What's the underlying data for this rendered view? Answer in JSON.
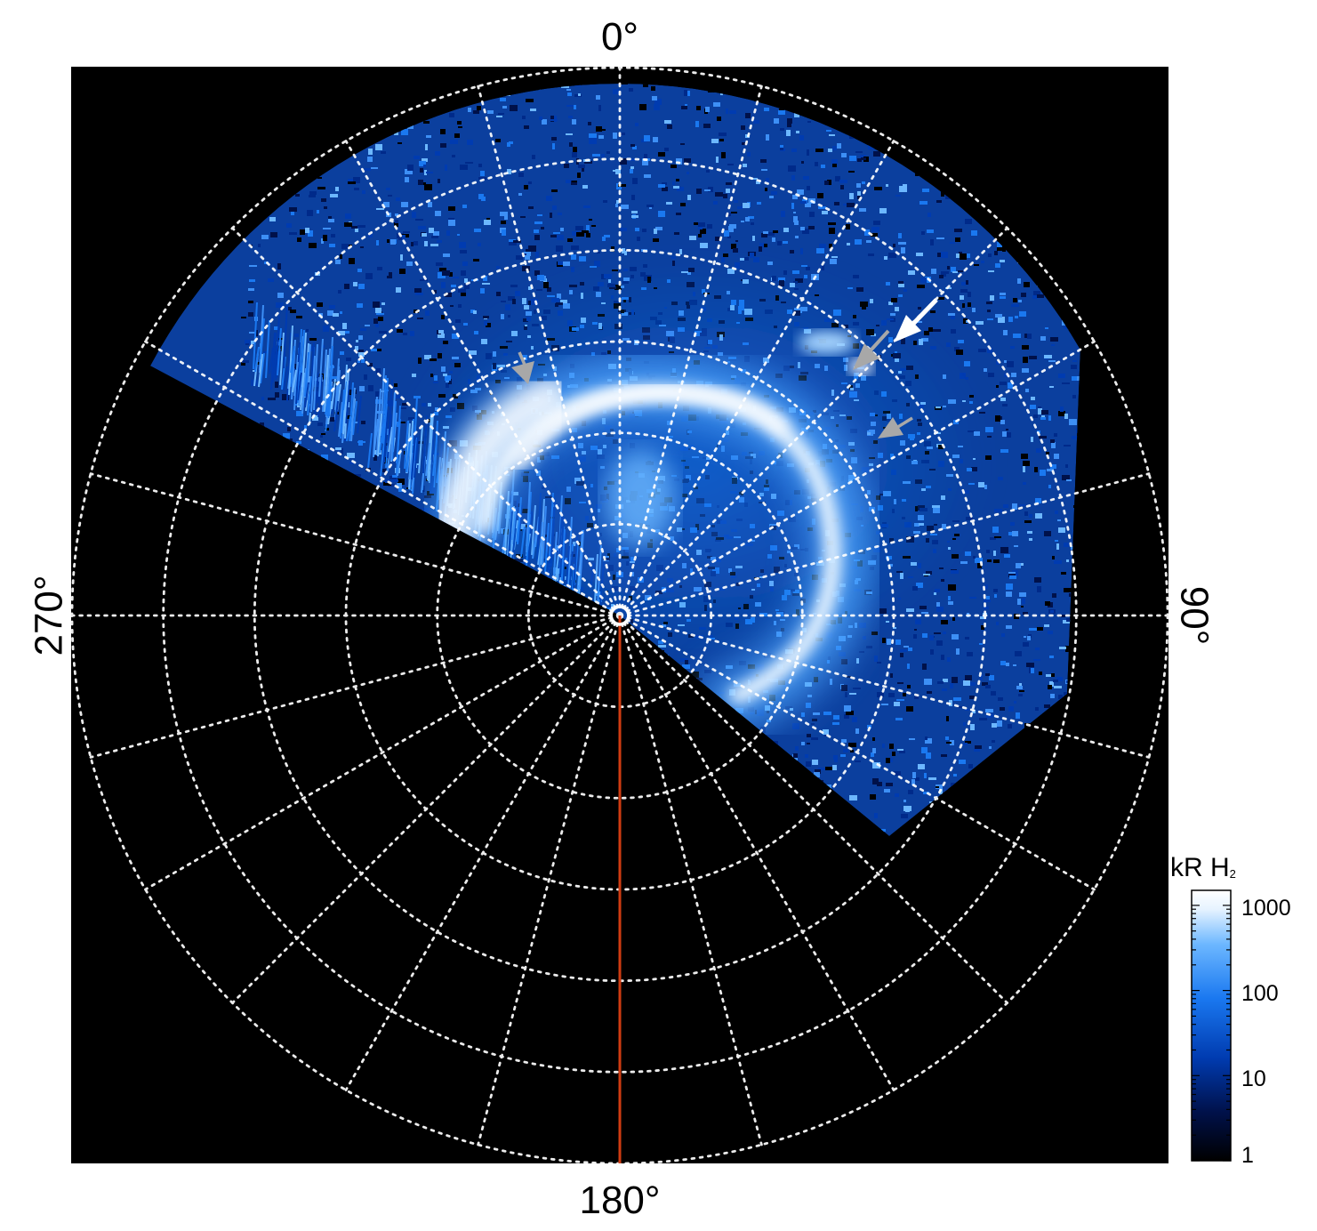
{
  "projection": {
    "type": "polar",
    "background_color": "#000000",
    "grid_color": "#ffffff",
    "grid_style": "dotted",
    "meridian_step_deg": 15,
    "latitude_circle_count": 6,
    "labels": {
      "top": "0°",
      "right": "90°",
      "bottom": "180°",
      "left": "270°"
    },
    "reference_meridian": {
      "longitude_deg": 180,
      "color": "#d03c12"
    },
    "pole_marker_color": "#ffffff"
  },
  "aurora": {
    "palette": [
      "#000000",
      "#00114a",
      "#003bb0",
      "#1a78f0",
      "#6cb7ff",
      "#e6f3ff",
      "#ffffff"
    ],
    "arrows": [
      {
        "name": "white-arrow",
        "color": "#ffffff"
      },
      {
        "name": "gray-arrow-upper-right",
        "color": "#a8a8a8"
      },
      {
        "name": "gray-arrow-lower-right",
        "color": "#a8a8a8"
      },
      {
        "name": "gray-arrow-left",
        "color": "#a8a8a8"
      }
    ]
  },
  "colorbar": {
    "title_main": "kR H",
    "title_sub": "2",
    "scale": "log",
    "ticks": [
      "1000",
      "100",
      "10",
      "1"
    ],
    "tick_values": [
      1000,
      100,
      10,
      1
    ],
    "range": [
      1,
      1500
    ],
    "colors": [
      "#000000",
      "#00114a",
      "#003bb0",
      "#1a78f0",
      "#6cb7ff",
      "#e6f3ff",
      "#ffffff"
    ]
  }
}
